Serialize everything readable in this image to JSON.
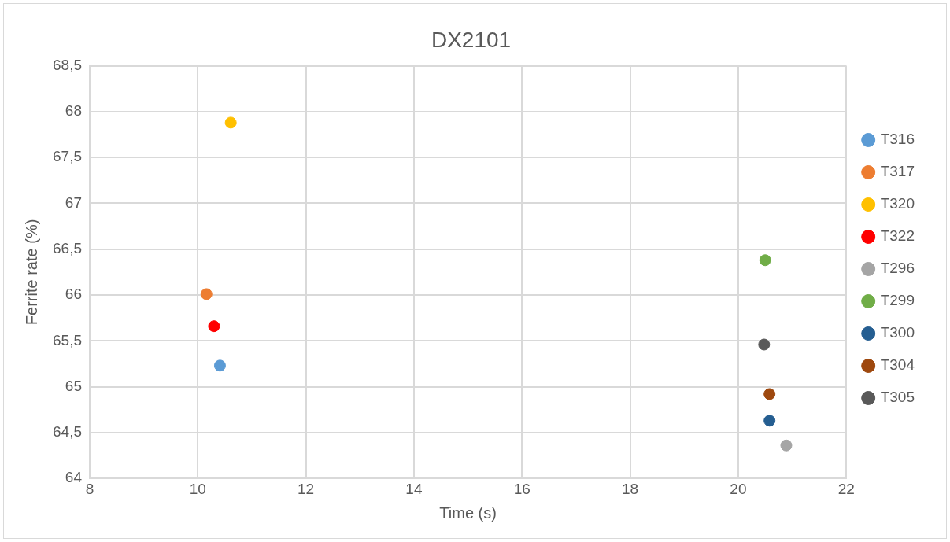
{
  "chart_data": {
    "type": "scatter",
    "title": "DX2101",
    "xlabel": "Time (s)",
    "ylabel": "Ferrite rate (%)",
    "xlim": [
      8,
      22
    ],
    "xticks": [
      8,
      10,
      12,
      14,
      16,
      18,
      20,
      22
    ],
    "ylim": [
      64,
      68.5
    ],
    "yticks": [
      64,
      {
        "value": 64.5,
        "label": "64,5"
      },
      65,
      {
        "value": 65.5,
        "label": "65,5"
      },
      66,
      {
        "value": 66.5,
        "label": "66,5"
      },
      67,
      {
        "value": 67.5,
        "label": "67,5"
      },
      68,
      {
        "value": 68.5,
        "label": "68,5"
      }
    ],
    "grid": true,
    "legend": "right",
    "marker": "circle",
    "series": [
      {
        "name": "T316",
        "color": "#5b9bd5",
        "x": [
          10.41
        ],
        "values": [
          65.23
        ]
      },
      {
        "name": "T317",
        "color": "#ed7d31",
        "x": [
          10.16
        ],
        "values": [
          66.01
        ]
      },
      {
        "name": "T320",
        "color": "#ffc000",
        "x": [
          10.61
        ],
        "values": [
          67.88
        ]
      },
      {
        "name": "T322",
        "color": "#ff0000",
        "x": [
          10.3
        ],
        "values": [
          65.66
        ]
      },
      {
        "name": "T296",
        "color": "#a5a5a5",
        "x": [
          20.89
        ],
        "values": [
          64.36
        ]
      },
      {
        "name": "T299",
        "color": "#70ad47",
        "x": [
          20.5
        ],
        "values": [
          66.38
        ]
      },
      {
        "name": "T300",
        "color": "#255e91",
        "x": [
          20.58
        ],
        "values": [
          64.63
        ]
      },
      {
        "name": "T304",
        "color": "#9e480e",
        "x": [
          20.58
        ],
        "values": [
          64.92
        ]
      },
      {
        "name": "T305",
        "color": "#595959",
        "x": [
          20.48
        ],
        "values": [
          65.46
        ]
      }
    ]
  }
}
